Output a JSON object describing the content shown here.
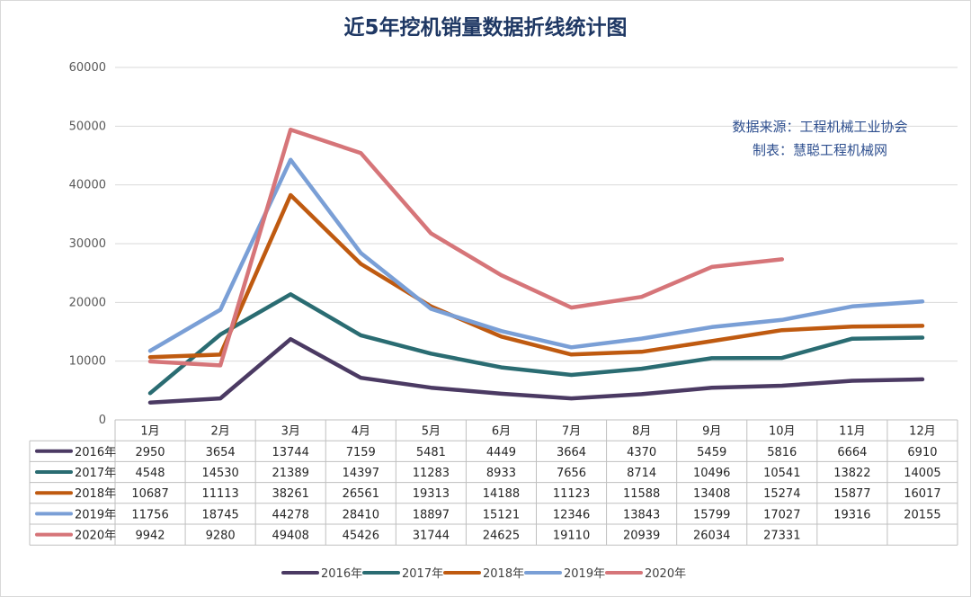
{
  "chart_data": {
    "type": "line",
    "title": "近5年挖机销量数据折线统计图",
    "categories": [
      "1月",
      "2月",
      "3月",
      "4月",
      "5月",
      "6月",
      "7月",
      "8月",
      "9月",
      "10月",
      "11月",
      "12月"
    ],
    "ylim": [
      0,
      60000
    ],
    "yticks": [
      0,
      10000,
      20000,
      30000,
      40000,
      50000,
      60000
    ],
    "grid": true,
    "legend": "bottom",
    "series": [
      {
        "name": "2016年",
        "color": "#4b3a63",
        "values": [
          2950,
          3654,
          13744,
          7159,
          5481,
          4449,
          3664,
          4370,
          5459,
          5816,
          6664,
          6910
        ]
      },
      {
        "name": "2017年",
        "color": "#2a6c72",
        "values": [
          4548,
          14530,
          21389,
          14397,
          11283,
          8933,
          7656,
          8714,
          10496,
          10541,
          13822,
          14005
        ]
      },
      {
        "name": "2018年",
        "color": "#bf5a10",
        "values": [
          10687,
          11113,
          38261,
          26561,
          19313,
          14188,
          11123,
          11588,
          13408,
          15274,
          15877,
          16017
        ]
      },
      {
        "name": "2019年",
        "color": "#7a9fd6",
        "values": [
          11756,
          18745,
          44278,
          28410,
          18897,
          15121,
          12346,
          13843,
          15799,
          17027,
          19316,
          20155
        ]
      },
      {
        "name": "2020年",
        "color": "#d67579",
        "values": [
          9942,
          9280,
          49408,
          45426,
          31744,
          24625,
          19110,
          20939,
          26034,
          27331,
          null,
          null
        ]
      }
    ],
    "annotations": [
      "数据来源：工程机械工业协会",
      "制表：慧聪工程机械网"
    ]
  }
}
